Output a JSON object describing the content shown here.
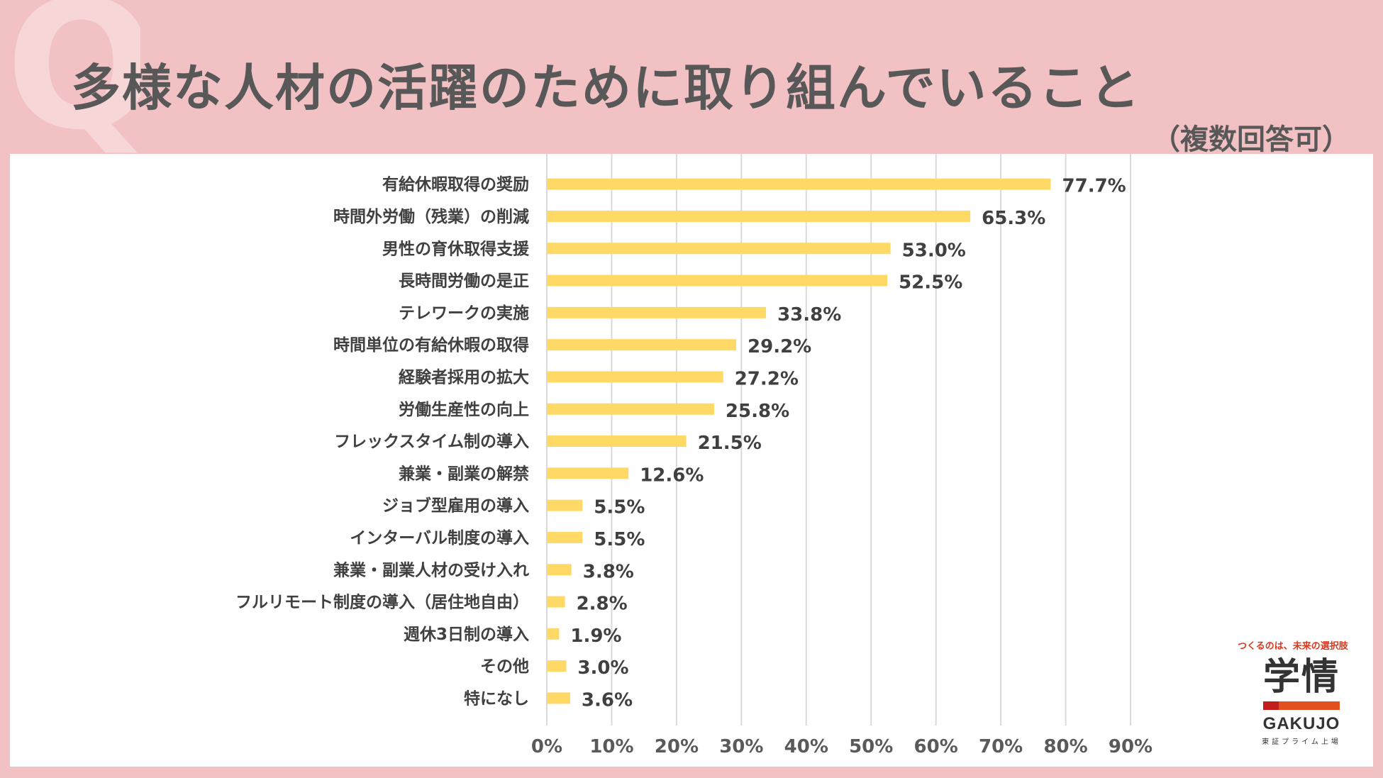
{
  "header": {
    "title": "多様な人材の活躍のために取り組んでいること",
    "subtitle": "（複数回答可）",
    "decor_letter": "Q"
  },
  "colors": {
    "background": "#f2c1c3",
    "bar": "#ffd966",
    "grid": "#d9d9d9",
    "text": "#404040"
  },
  "logo": {
    "tagline": "つくるのは、未来の選択肢",
    "mark": "学情",
    "name": "GAKUJO",
    "sub": "東証プライム上場"
  },
  "chart_data": {
    "type": "bar",
    "orientation": "horizontal",
    "categories": [
      "有給休暇取得の奨励",
      "時間外労働（残業）の削減",
      "男性の育休取得支援",
      "長時間労働の是正",
      "テレワークの実施",
      "時間単位の有給休暇の取得",
      "経験者採用の拡大",
      "労働生産性の向上",
      "フレックスタイム制の導入",
      "兼業・副業の解禁",
      "ジョブ型雇用の導入",
      "インターバル制度の導入",
      "兼業・副業人材の受け入れ",
      "フルリモート制度の導入（居住地自由）",
      "週休3日制の導入",
      "その他",
      "特になし"
    ],
    "values": [
      77.7,
      65.3,
      53.0,
      52.5,
      33.8,
      29.2,
      27.2,
      25.8,
      21.5,
      12.6,
      5.5,
      5.5,
      3.8,
      2.8,
      1.9,
      3.0,
      3.6
    ],
    "value_labels": [
      "77.7%",
      "65.3%",
      "53.0%",
      "52.5%",
      "33.8%",
      "29.2%",
      "27.2%",
      "25.8%",
      "21.5%",
      "12.6%",
      "5.5%",
      "5.5%",
      "3.8%",
      "2.8%",
      "1.9%",
      "3.0%",
      "3.6%"
    ],
    "xlim": [
      0,
      90
    ],
    "xticks": [
      "0%",
      "10%",
      "20%",
      "30%",
      "40%",
      "50%",
      "60%",
      "70%",
      "80%",
      "90%"
    ],
    "grid": true,
    "legend": "none"
  }
}
